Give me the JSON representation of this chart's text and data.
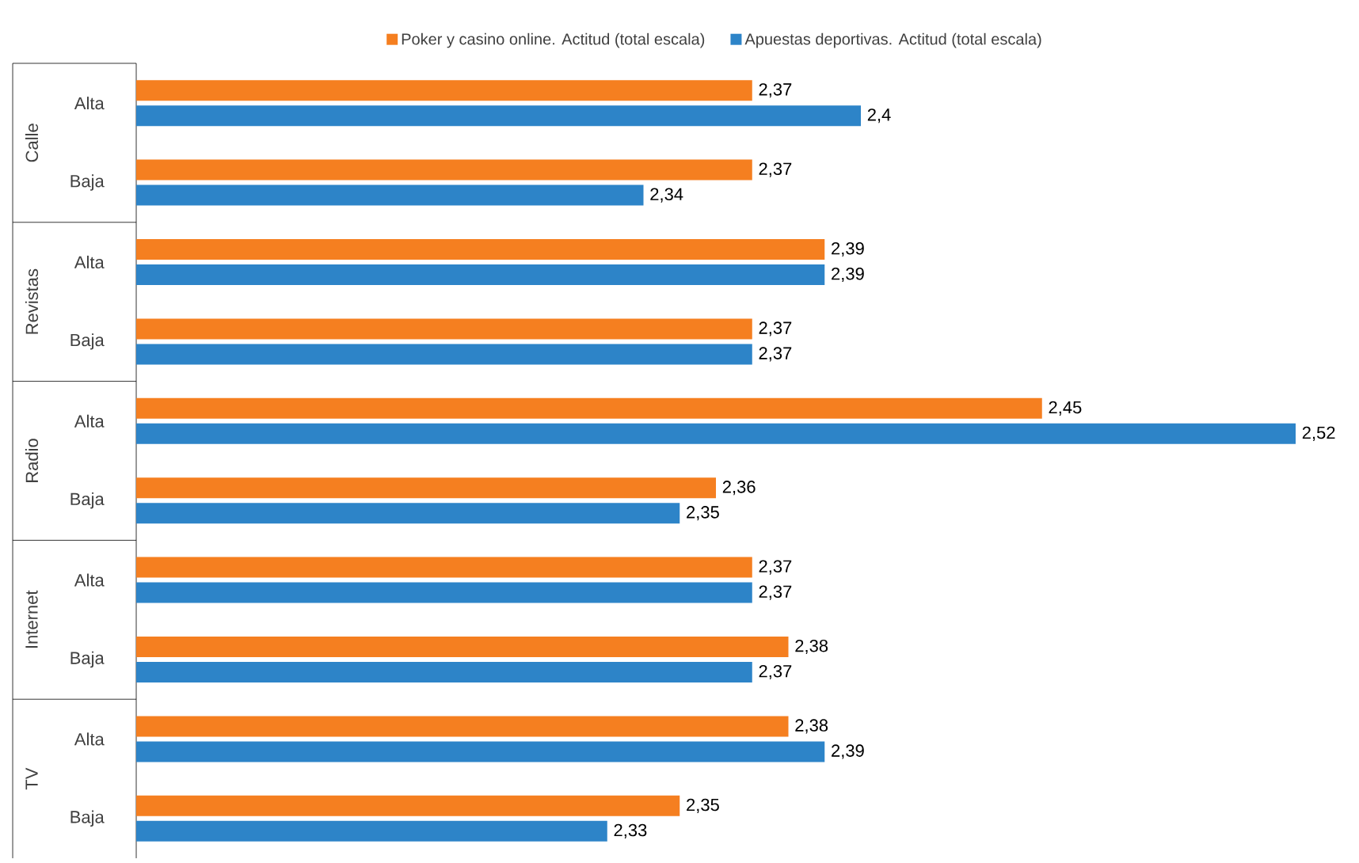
{
  "chart_data": {
    "type": "bar",
    "orientation": "horizontal",
    "categories": [
      "Alta",
      "Baja",
      "Alta",
      "Baja",
      "Alta",
      "Baja",
      "Alta",
      "Baja",
      "Alta",
      "Baja"
    ],
    "series": [
      {
        "name": "Poker y casino online. Actitud (total escala)",
        "color": "#f57f20",
        "values": [
          2.37,
          2.37,
          2.39,
          2.37,
          2.45,
          2.36,
          2.37,
          2.38,
          2.38,
          2.35
        ],
        "value_labels": [
          "2,37",
          "2,37",
          "2,39",
          "2,37",
          "2,45",
          "2,36",
          "2,37",
          "2,38",
          "2,38",
          "2,35"
        ]
      },
      {
        "name": "Apuestas deportivas. Actitud (total escala)",
        "color": "#2d84c8",
        "values": [
          2.4,
          2.34,
          2.39,
          2.37,
          2.52,
          2.35,
          2.37,
          2.37,
          2.39,
          2.33
        ],
        "value_labels": [
          "2,4",
          "2,34",
          "2,39",
          "2,37",
          "2,52",
          "2,35",
          "2,37",
          "2,37",
          "2,39",
          "2,33"
        ]
      }
    ],
    "annotations": [
      "Calle",
      "Revistas",
      "Radio",
      "Internet",
      "TV"
    ],
    "xlim": [
      2.2,
      2.52
    ],
    "legend": "top",
    "tick_labels": "y"
  }
}
